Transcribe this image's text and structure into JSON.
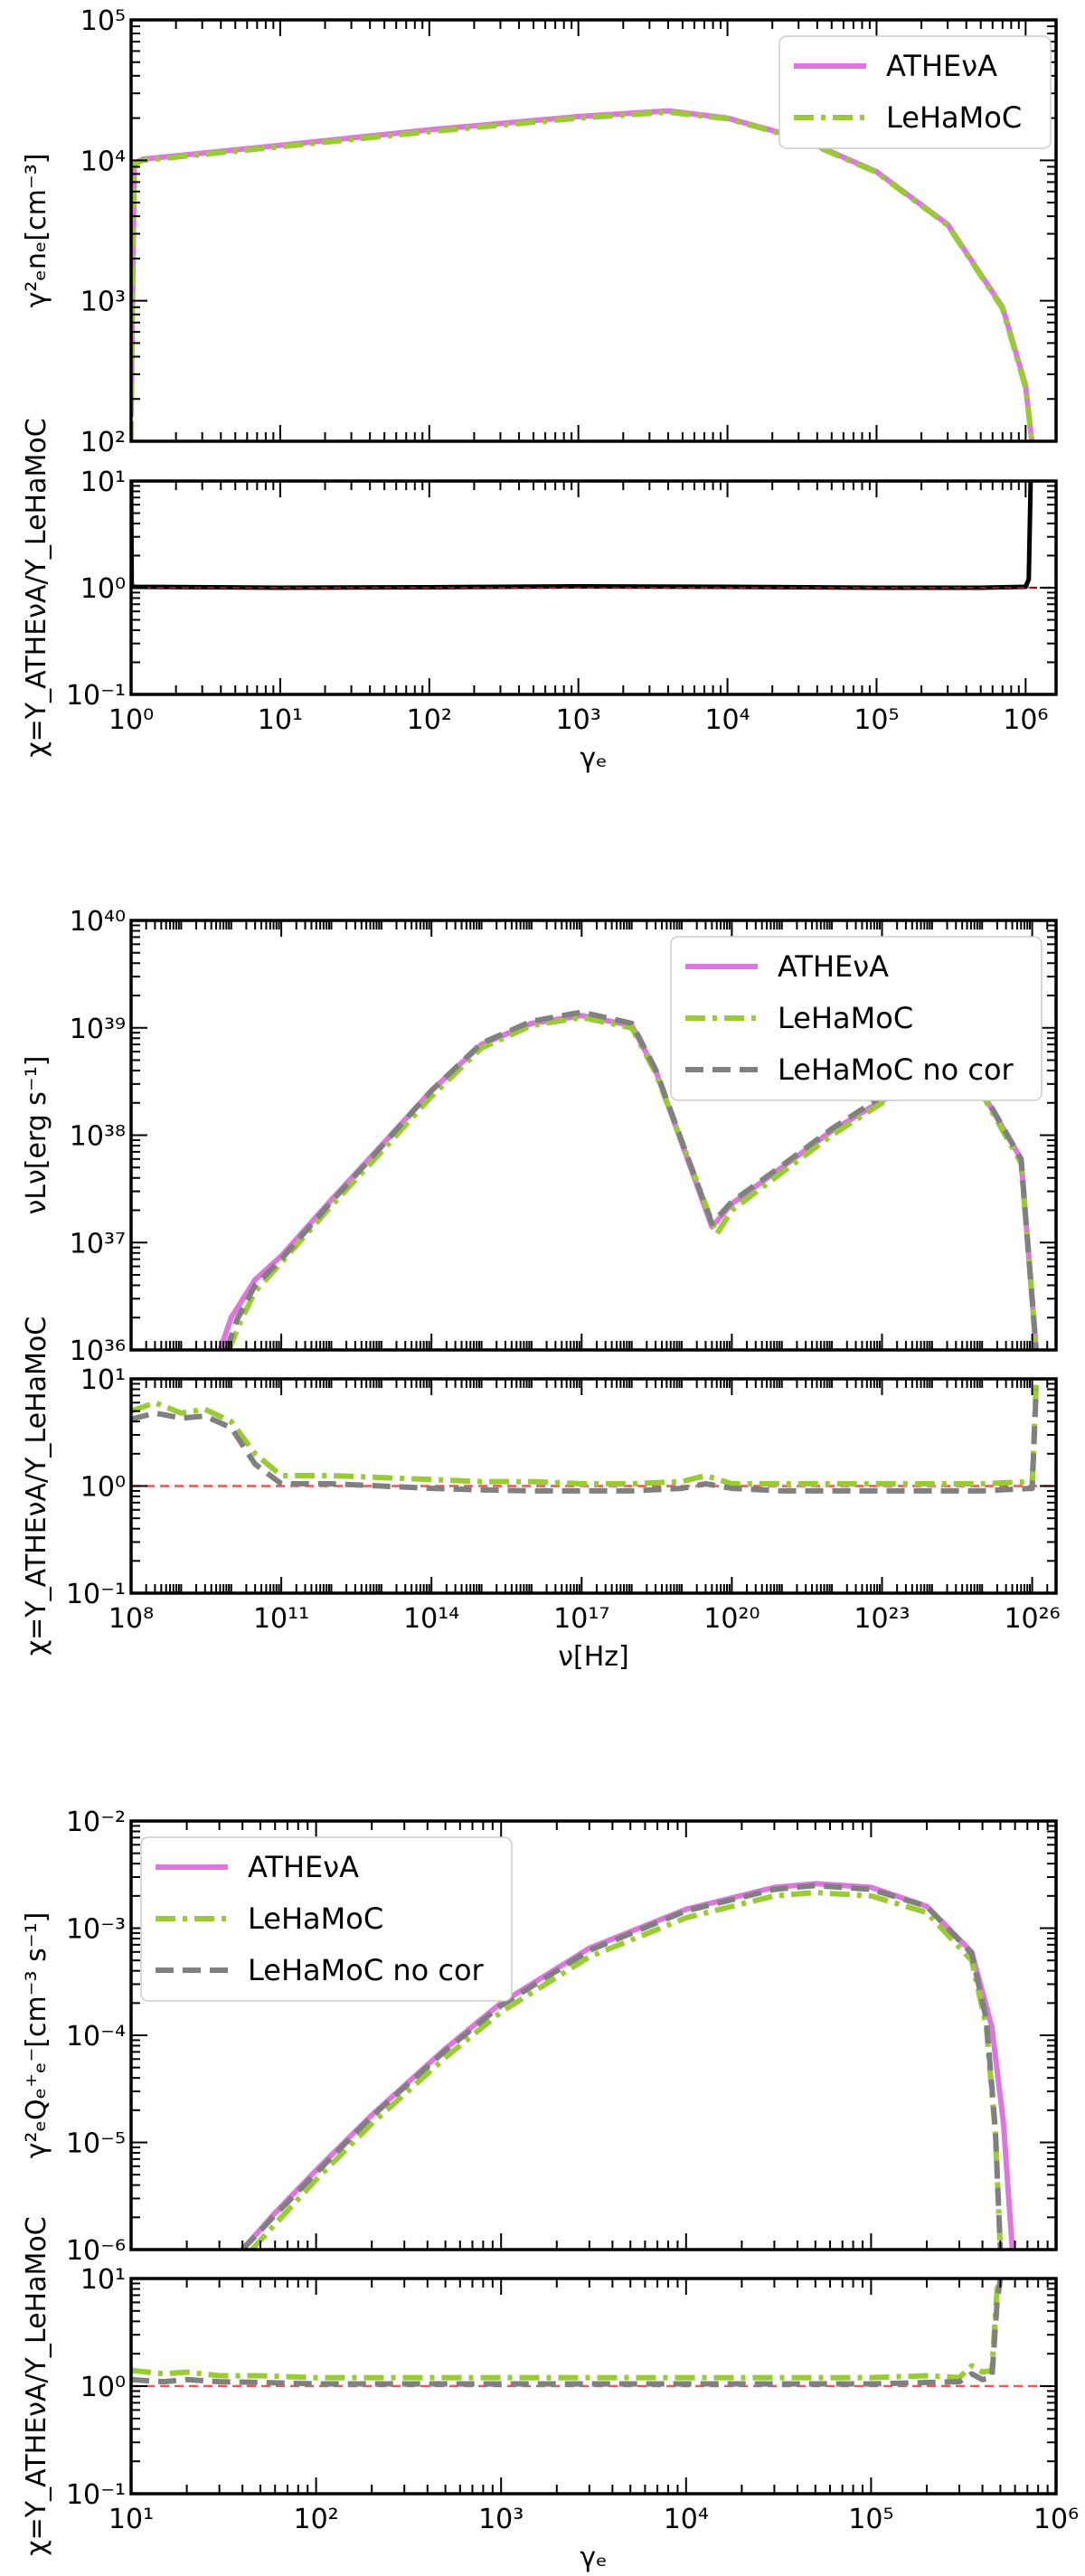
{
  "colors": {
    "athena": "#dd77dd",
    "lehamoc": "#99cc33",
    "nocor": "#808080",
    "ratio_ref": "#ee5555",
    "ratio_main": "#000000",
    "ratio_overlap": "#8b1a1a"
  },
  "chart_data": [
    {
      "type": "line",
      "title": "",
      "top_ylabel": "γ²ₑnₑ[cm⁻³]",
      "bottom_ylabel": "χ=Y_ATHEνA/Y_LeHaMoC",
      "xlabel": "γₑ",
      "xscale": "log",
      "xlim": [
        1,
        1600000.0
      ],
      "top_ylim": [
        100,
        100000
      ],
      "bottom_ylim": [
        0.1,
        10
      ],
      "x_ticks": [
        "10⁰",
        "10¹",
        "10²",
        "10³",
        "10⁴",
        "10⁵",
        "10⁶"
      ],
      "top_y_ticks": [
        "10²",
        "10³",
        "10⁴",
        "10⁵"
      ],
      "bottom_y_ticks": [
        "10⁻¹",
        "10⁰",
        "10¹"
      ],
      "legend": [
        "ATHEνA",
        "LeHaMoC"
      ],
      "legend_position": "top-right",
      "series": [
        {
          "name": "ATHEνA",
          "x": [
            1.0,
            1.05,
            1.2,
            10,
            100,
            1000,
            4000,
            10000,
            30000,
            100000,
            300000,
            700000,
            1000000,
            1100000
          ],
          "y": [
            150,
            9500,
            10200,
            12800,
            16500,
            20500,
            22500,
            20000,
            14500,
            8300,
            3500,
            900,
            250,
            100
          ]
        },
        {
          "name": "LeHaMoC",
          "x": [
            1.0,
            1.02,
            1.05,
            1.2,
            10,
            100,
            1000,
            4000,
            10000,
            30000,
            100000,
            300000,
            700000,
            1000000,
            1100000
          ],
          "y": [
            100,
            1500,
            9400,
            10000,
            12500,
            16000,
            20000,
            22000,
            19800,
            14300,
            8200,
            3450,
            880,
            240,
            100
          ]
        }
      ],
      "ratio_series": [
        {
          "name": "χ",
          "x": [
            1.0,
            1.01,
            1.05,
            10,
            100,
            1000,
            10000,
            100000,
            500000,
            1000000,
            1050000,
            1080000
          ],
          "y": [
            10,
            1.05,
            1.02,
            1.0,
            1.01,
            1.03,
            1.02,
            1.0,
            1.0,
            1.02,
            1.2,
            10
          ]
        }
      ]
    },
    {
      "type": "line",
      "title": "",
      "top_ylabel": "νLν[erg s⁻¹]",
      "bottom_ylabel": "χ=Y_ATHEνA/Y_LeHaMoC",
      "xlabel": "ν[Hz]",
      "xscale": "log",
      "xlim": [
        100000000.0,
        3e+26
      ],
      "top_ylim": [
        1e+36,
        1e+40
      ],
      "bottom_ylim": [
        0.1,
        10
      ],
      "x_ticks": [
        "10⁸",
        "10¹¹",
        "10¹⁴",
        "10¹⁷",
        "10²⁰",
        "10²³",
        "10²⁶"
      ],
      "top_y_ticks": [
        "10³⁶",
        "10³⁷",
        "10³⁸",
        "10³⁹",
        "10⁴⁰"
      ],
      "bottom_y_ticks": [
        "10⁻¹",
        "10⁰",
        "10¹"
      ],
      "legend": [
        "ATHEνA",
        "LeHaMoC",
        "LeHaMoC no cor"
      ],
      "legend_position": "top-right",
      "series": [
        {
          "name": "ATHEνA",
          "x": [
            6000000000.0,
            10000000000.0,
            30000000000.0,
            100000000000.0,
            1000000000000.0,
            10000000000000.0,
            100000000000000.0,
            1000000000000000.0,
            1e+16,
            1e+17,
            1e+18,
            3e+18,
            4e+19,
            1e+20,
            1e+21,
            1e+22,
            1e+23,
            1e+24,
            1e+25,
            6e+25,
            1.2e+26
          ],
          "y": [
            1e+36,
            2e+36,
            4.5e+36,
            7.5e+36,
            2.5e+37,
            8e+37,
            2.6e+38,
            7e+38,
            1.1e+39,
            1.3e+39,
            1.05e+39,
            4e+38,
            1.4e+37,
            2.3e+37,
            5e+37,
            1.1e+38,
            2.1e+38,
            3.3e+38,
            2.5e+38,
            6e+37,
            1e+36
          ]
        },
        {
          "name": "LeHaMoC",
          "x": [
            9000000000.0,
            15000000000.0,
            30000000000.0,
            100000000000.0,
            1000000000000.0,
            10000000000000.0,
            100000000000000.0,
            1000000000000000.0,
            1e+16,
            1e+17,
            1e+18,
            3e+18,
            5e+19,
            1e+20,
            1e+21,
            1e+22,
            1e+23,
            1e+24,
            1e+25,
            6e+25,
            1.2e+26
          ],
          "y": [
            1e+36,
            1.8e+36,
            3.5e+36,
            6.5e+36,
            2.2e+37,
            7e+37,
            2.3e+38,
            6.5e+38,
            1.05e+39,
            1.25e+39,
            1e+39,
            3.8e+38,
            1.2e+37,
            2e+37,
            4.5e+37,
            1e+38,
            2e+38,
            3.2e+38,
            2.4e+38,
            5.5e+37,
            1e+36
          ]
        },
        {
          "name": "LeHaMoC no cor",
          "x": [
            8000000000.0,
            13000000000.0,
            30000000000.0,
            100000000000.0,
            1000000000000.0,
            10000000000000.0,
            100000000000000.0,
            1000000000000000.0,
            1e+16,
            1e+17,
            1e+18,
            3e+18,
            4e+19,
            1e+20,
            1e+21,
            1e+22,
            1e+23,
            1e+24,
            1e+25,
            6e+25,
            1.2e+26
          ],
          "y": [
            1e+36,
            1.9e+36,
            4e+36,
            7e+36,
            2.4e+37,
            7.8e+37,
            2.6e+38,
            7.2e+38,
            1.15e+39,
            1.4e+39,
            1.1e+39,
            4.1e+38,
            1.5e+37,
            2.4e+37,
            5.2e+37,
            1.15e+38,
            2.3e+38,
            3.4e+38,
            2.6e+38,
            6e+37,
            1e+36
          ]
        }
      ],
      "ratio_series": [
        {
          "name": "LeHaMoC",
          "x": [
            100000000.0,
            300000000.0,
            1000000000.0,
            3000000000.0,
            10000000000.0,
            30000000000.0,
            100000000000.0,
            1000000000000.0,
            10000000000000.0,
            100000000000000.0,
            1000000000000000.0,
            1e+16,
            1e+17,
            1e+18,
            1e+19,
            3e+19,
            1e+20,
            1e+21,
            1e+22,
            1e+23,
            1e+24,
            1e+25,
            1e+26,
            1.2e+26
          ],
          "y": [
            5.0,
            6.0,
            4.8,
            5.2,
            4.0,
            2.0,
            1.25,
            1.25,
            1.2,
            1.15,
            1.1,
            1.1,
            1.05,
            1.05,
            1.1,
            1.25,
            1.05,
            1.05,
            1.05,
            1.05,
            1.05,
            1.05,
            1.1,
            9
          ]
        },
        {
          "name": "LeHaMoC no cor",
          "x": [
            100000000.0,
            300000000.0,
            1000000000.0,
            3000000000.0,
            10000000000.0,
            30000000000.0,
            100000000000.0,
            1000000000000.0,
            10000000000000.0,
            100000000000000.0,
            1000000000000000.0,
            1e+16,
            1e+17,
            1e+18,
            1e+19,
            3e+19,
            1e+20,
            1e+21,
            1e+22,
            1e+23,
            1e+24,
            1e+25,
            1e+26,
            1.2e+26
          ],
          "y": [
            4.2,
            4.8,
            4.3,
            4.5,
            3.5,
            1.6,
            1.05,
            1.05,
            1.0,
            0.95,
            0.92,
            0.9,
            0.9,
            0.9,
            0.95,
            1.05,
            0.95,
            0.9,
            0.9,
            0.9,
            0.9,
            0.9,
            0.95,
            8
          ]
        }
      ]
    },
    {
      "type": "line",
      "title": "",
      "top_ylabel": "γ²ₑQₑ⁺ₑ⁻[cm⁻³ s⁻¹]",
      "bottom_ylabel": "χ=Y_ATHEνA/Y_LeHaMoC",
      "xlabel": "γₑ",
      "xscale": "log",
      "xlim": [
        10,
        1000000.0
      ],
      "top_ylim": [
        1e-06,
        0.01
      ],
      "bottom_ylim": [
        0.1,
        10
      ],
      "x_ticks": [
        "10¹",
        "10²",
        "10³",
        "10⁴",
        "10⁵",
        "10⁶"
      ],
      "top_y_ticks": [
        "10⁻⁶",
        "10⁻⁵",
        "10⁻⁴",
        "10⁻³",
        "10⁻²"
      ],
      "bottom_y_ticks": [
        "10⁻¹",
        "10⁰",
        "10¹"
      ],
      "legend": [
        "ATHEνA",
        "LeHaMoC",
        "LeHaMoC no cor"
      ],
      "legend_position": "top-left",
      "series": [
        {
          "name": "ATHEνA",
          "x": [
            40,
            60,
            100,
            200,
            500,
            1000,
            3000,
            10000,
            30000,
            50000,
            100000,
            200000,
            350000,
            450000,
            520000,
            580000
          ],
          "y": [
            1e-06,
            2.2e-06,
            5.5e-06,
            1.8e-05,
            7.5e-05,
            0.0002,
            0.00065,
            0.0015,
            0.0024,
            0.0026,
            0.0024,
            0.0016,
            0.0006,
            0.00012,
            1.5e-05,
            1e-06
          ]
        },
        {
          "name": "LeHaMoC",
          "x": [
            45,
            65,
            100,
            200,
            500,
            1000,
            3000,
            10000,
            30000,
            50000,
            100000,
            200000,
            350000,
            420000,
            470000,
            500000
          ],
          "y": [
            1e-06,
            2e-06,
            4.5e-06,
            1.5e-05,
            6.2e-05,
            0.000165,
            0.00054,
            0.00125,
            0.002,
            0.00215,
            0.002,
            0.0014,
            0.0005,
            0.00012,
            1.2e-05,
            1e-06
          ]
        },
        {
          "name": "LeHaMoC no cor",
          "x": [
            40,
            60,
            100,
            200,
            500,
            1000,
            3000,
            10000,
            30000,
            50000,
            100000,
            200000,
            350000,
            420000,
            470000,
            500000
          ],
          "y": [
            1e-06,
            2.1e-06,
            5.2e-06,
            1.75e-05,
            7.2e-05,
            0.00019,
            0.00062,
            0.00145,
            0.0023,
            0.0025,
            0.0023,
            0.0016,
            0.00058,
            0.00014,
            1.3e-05,
            1e-06
          ]
        }
      ],
      "ratio_series": [
        {
          "name": "LeHaMoC",
          "x": [
            10,
            15,
            20,
            30,
            50,
            100,
            300,
            1000,
            3000,
            10000,
            30000,
            100000,
            200000,
            300000,
            350000,
            400000,
            450000,
            480000,
            500000
          ],
          "y": [
            1.4,
            1.3,
            1.35,
            1.25,
            1.25,
            1.2,
            1.2,
            1.2,
            1.2,
            1.2,
            1.2,
            1.2,
            1.25,
            1.2,
            1.55,
            1.35,
            1.4,
            8,
            10
          ]
        },
        {
          "name": "LeHaMoC no cor",
          "x": [
            10,
            15,
            20,
            30,
            50,
            100,
            300,
            1000,
            3000,
            10000,
            30000,
            100000,
            200000,
            300000,
            350000,
            400000,
            450000,
            480000,
            500000
          ],
          "y": [
            1.15,
            1.1,
            1.15,
            1.1,
            1.08,
            1.05,
            1.05,
            1.05,
            1.05,
            1.05,
            1.05,
            1.05,
            1.08,
            1.1,
            1.3,
            1.15,
            1.2,
            6,
            10
          ]
        }
      ]
    }
  ]
}
